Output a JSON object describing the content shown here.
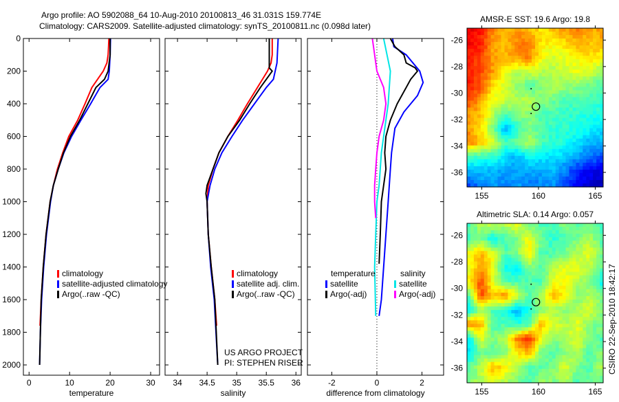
{
  "title_line1": "Argo profile: AO 5902088_64 10-Aug-2010 20100813_46 31.031S 159.774E",
  "title_line2": "Climatology: CARS2009. Satellite-adjusted climatology: synTS_20100811.nc (0.098d later)",
  "project_line1": "US ARGO PROJECT",
  "project_line2": "PI: STEPHEN RISER",
  "footer_stamp": "CSIRO 22-Sep-2010 18:42:17",
  "colors": {
    "climatology": "#ff0000",
    "satellite": "#0000ff",
    "argo": "#000000",
    "sal_satellite": "#00e5e5",
    "sal_argo": "#ff00ff"
  },
  "chart_data": [
    {
      "type": "line",
      "id": "temperature",
      "xlabel": "temperature",
      "ylabel": "",
      "xlim": [
        -1.4,
        32.2
      ],
      "ylim": [
        0,
        2063
      ],
      "xticks": [
        0,
        10,
        20,
        30
      ],
      "yticks": [
        0,
        200,
        400,
        600,
        800,
        1000,
        1200,
        1400,
        1600,
        1800,
        2000
      ],
      "legend": [
        "climatology",
        "satellite-adjusted climatology",
        "Argo(..raw -QC)"
      ],
      "legend_position": "lower-left",
      "series": [
        {
          "name": "climatology",
          "color": "#ff0000",
          "depth": [
            0,
            50,
            100,
            150,
            200,
            300,
            400,
            500,
            600,
            700,
            800,
            900,
            1000,
            1200,
            1400,
            1600,
            1760
          ],
          "values": [
            19.7,
            19.6,
            19.5,
            19.2,
            18.3,
            15.5,
            13.8,
            12.0,
            9.8,
            8.3,
            7.0,
            6.0,
            5.2,
            4.2,
            3.5,
            3.0,
            2.7
          ]
        },
        {
          "name": "satellite-adjusted climatology",
          "color": "#0000ff",
          "depth": [
            0,
            100,
            200,
            250,
            300,
            400,
            500,
            600,
            700,
            800,
            900,
            1000,
            1200,
            1400,
            1600,
            1800,
            2000
          ],
          "values": [
            20.1,
            20.0,
            19.8,
            19.5,
            17.5,
            15.2,
            12.8,
            10.5,
            8.6,
            7.2,
            6.0,
            5.3,
            4.3,
            3.6,
            3.1,
            2.8,
            2.6
          ]
        },
        {
          "name": "Argo(..raw -QC)",
          "color": "#000000",
          "depth": [
            0,
            100,
            200,
            250,
            300,
            400,
            500,
            600,
            700,
            800,
            900,
            1000,
            1200,
            1400,
            1600,
            1800,
            2000
          ],
          "values": [
            20.0,
            20.0,
            19.5,
            18.6,
            16.5,
            14.5,
            12.5,
            10.2,
            8.5,
            7.2,
            6.0,
            5.2,
            4.2,
            3.5,
            3.0,
            2.8,
            2.6
          ]
        }
      ]
    },
    {
      "type": "line",
      "id": "salinity",
      "xlabel": "salinity",
      "xlim": [
        33.79,
        36.09
      ],
      "ylim": [
        0,
        2063
      ],
      "xticks": [
        34,
        34.5,
        35,
        35.5,
        36
      ],
      "legend": [
        "climatology",
        "satellite adj. clim.",
        "Argo(..raw -QC)"
      ],
      "legend_position": "lower-right",
      "series": [
        {
          "name": "climatology",
          "color": "#ff0000",
          "depth": [
            0,
            100,
            150,
            200,
            300,
            400,
            500,
            600,
            700,
            800,
            900,
            1000,
            1200,
            1400,
            1600,
            1760
          ],
          "values": [
            35.6,
            35.6,
            35.58,
            35.52,
            35.35,
            35.18,
            35.02,
            34.85,
            34.7,
            34.6,
            34.52,
            34.5,
            34.52,
            34.57,
            34.63,
            34.66
          ]
        },
        {
          "name": "satellite adj. clim.",
          "color": "#0000ff",
          "depth": [
            0,
            150,
            250,
            300,
            400,
            500,
            600,
            700,
            800,
            900,
            1000,
            1200,
            1400,
            1600,
            1800,
            2000
          ],
          "values": [
            35.7,
            35.68,
            35.62,
            35.5,
            35.3,
            35.1,
            34.92,
            34.75,
            34.63,
            34.55,
            34.5,
            34.52,
            34.56,
            34.62,
            34.65,
            34.68
          ]
        },
        {
          "name": "Argo(..raw -QC)",
          "color": "#000000",
          "depth": [
            0,
            100,
            180,
            200,
            250,
            300,
            400,
            500,
            600,
            700,
            800,
            900,
            950,
            1000,
            1200,
            1400,
            1600,
            2000
          ],
          "values": [
            35.55,
            35.55,
            35.55,
            35.6,
            35.5,
            35.4,
            35.22,
            35.05,
            34.85,
            34.7,
            34.6,
            34.5,
            34.48,
            34.5,
            34.52,
            34.57,
            34.63,
            34.68
          ]
        }
      ]
    },
    {
      "type": "line",
      "id": "difference",
      "xlabel": "difference from climatology",
      "xlim": [
        -3.08,
        2.96
      ],
      "ylim": [
        0,
        2063
      ],
      "xticks": [
        -2,
        0,
        2
      ],
      "legend_headers": [
        "temperature",
        "salinity"
      ],
      "legend": [
        "satellite",
        "Argo(-adj)",
        "satellite",
        "Argo(-adj)"
      ],
      "series": [
        {
          "name": "temperature satellite",
          "color": "#0000ff",
          "depth": [
            0,
            50,
            100,
            200,
            270,
            350,
            450,
            550,
            700,
            800,
            1000,
            1200,
            1400,
            1600,
            1700
          ],
          "values": [
            0.7,
            0.75,
            1.3,
            1.9,
            2.05,
            1.8,
            1.2,
            0.8,
            0.65,
            0.6,
            0.5,
            0.4,
            0.3,
            0.2,
            0.1
          ]
        },
        {
          "name": "temperature Argo(-adj)",
          "color": "#000000",
          "depth": [
            0,
            50,
            100,
            150,
            180,
            200,
            250,
            300,
            400,
            500,
            600,
            700,
            800,
            900,
            1000,
            1200,
            1380
          ],
          "values": [
            0.6,
            0.8,
            1.2,
            1.3,
            1.7,
            1.8,
            1.5,
            1.3,
            0.9,
            0.6,
            0.4,
            0.35,
            0.4,
            0.3,
            0.2,
            0.15,
            0.1
          ]
        },
        {
          "name": "salinity satellite",
          "color": "#00e5e5",
          "depth": [
            0,
            100,
            200,
            300,
            400,
            500,
            700,
            900,
            1000,
            1200,
            1400,
            1700
          ],
          "values": [
            0.3,
            0.45,
            0.6,
            0.55,
            0.5,
            0.4,
            0.2,
            0.1,
            0.0,
            -0.05,
            -0.1,
            -0.05
          ]
        },
        {
          "name": "salinity Argo(-adj)",
          "color": "#ff00ff",
          "depth": [
            0,
            100,
            200,
            300,
            400,
            500,
            600,
            700,
            800,
            900,
            1000,
            1100
          ],
          "values": [
            -0.2,
            -0.1,
            0.0,
            0.3,
            0.4,
            0.3,
            0.1,
            0.0,
            -0.05,
            -0.1,
            -0.1,
            -0.05
          ]
        }
      ]
    },
    {
      "type": "heatmap",
      "id": "sst-map",
      "title": "AMSR-E SST: 19.6 Argo: 19.8",
      "xlim": [
        153.7,
        165.7
      ],
      "ylim": [
        -37.1,
        -25.1
      ],
      "xticks": [
        155,
        160,
        165
      ],
      "yticks": [
        -26,
        -28,
        -30,
        -32,
        -34,
        -36
      ],
      "argo_position": [
        159.774,
        -31.031
      ],
      "grid": [
        [
          0.9,
          0.85,
          0.75,
          0.7,
          0.72,
          0.7,
          0.65,
          0.68,
          0.72,
          0.75,
          0.7,
          0.72
        ],
        [
          0.88,
          0.85,
          0.72,
          0.68,
          0.75,
          0.75,
          0.65,
          0.62,
          0.65,
          0.7,
          0.68,
          0.7
        ],
        [
          0.85,
          0.8,
          0.72,
          0.7,
          0.72,
          0.75,
          0.62,
          0.58,
          0.6,
          0.62,
          0.65,
          0.62
        ],
        [
          0.85,
          0.8,
          0.72,
          0.62,
          0.55,
          0.58,
          0.55,
          0.55,
          0.58,
          0.6,
          0.58,
          0.52
        ],
        [
          0.85,
          0.8,
          0.65,
          0.58,
          0.52,
          0.45,
          0.5,
          0.55,
          0.52,
          0.5,
          0.48,
          0.45
        ],
        [
          0.8,
          0.72,
          0.6,
          0.58,
          0.55,
          0.55,
          0.52,
          0.48,
          0.45,
          0.45,
          0.45,
          0.42
        ],
        [
          0.72,
          0.68,
          0.55,
          0.45,
          0.5,
          0.52,
          0.45,
          0.45,
          0.42,
          0.42,
          0.4,
          0.4
        ],
        [
          0.72,
          0.65,
          0.5,
          0.3,
          0.42,
          0.5,
          0.45,
          0.42,
          0.42,
          0.4,
          0.38,
          0.35
        ],
        [
          0.75,
          0.68,
          0.6,
          0.45,
          0.48,
          0.55,
          0.45,
          0.42,
          0.4,
          0.35,
          0.3,
          0.3
        ],
        [
          0.45,
          0.42,
          0.42,
          0.35,
          0.3,
          0.38,
          0.35,
          0.35,
          0.32,
          0.28,
          0.25,
          0.2
        ],
        [
          0.3,
          0.32,
          0.3,
          0.28,
          0.3,
          0.28,
          0.3,
          0.3,
          0.25,
          0.15,
          0.12,
          0.1
        ],
        [
          0.2,
          0.25,
          0.3,
          0.25,
          0.28,
          0.25,
          0.25,
          0.28,
          0.2,
          0.12,
          0.08,
          0.05
        ]
      ]
    },
    {
      "type": "heatmap",
      "id": "sla-map",
      "title": "Altimetric SLA: 0.14 Argo: 0.057",
      "xlim": [
        153.7,
        165.7
      ],
      "ylim": [
        -37.1,
        -25.1
      ],
      "xticks": [
        155,
        160,
        165
      ],
      "yticks": [
        -26,
        -28,
        -30,
        -32,
        -34,
        -36
      ],
      "argo_position": [
        159.774,
        -31.031
      ],
      "grid": [
        [
          0.45,
          0.55,
          0.55,
          0.55,
          0.6,
          0.5,
          0.45,
          0.45,
          0.5,
          0.45,
          0.5,
          0.45
        ],
        [
          0.45,
          0.5,
          0.38,
          0.45,
          0.5,
          0.62,
          0.48,
          0.42,
          0.45,
          0.5,
          0.55,
          0.45
        ],
        [
          0.62,
          0.7,
          0.6,
          0.45,
          0.5,
          0.65,
          0.45,
          0.45,
          0.5,
          0.55,
          0.6,
          0.5
        ],
        [
          0.6,
          0.72,
          0.62,
          0.4,
          0.35,
          0.5,
          0.45,
          0.55,
          0.6,
          0.6,
          0.55,
          0.48
        ],
        [
          0.65,
          0.8,
          0.6,
          0.45,
          0.45,
          0.45,
          0.45,
          0.6,
          0.62,
          0.55,
          0.5,
          0.38
        ],
        [
          0.45,
          0.8,
          0.68,
          0.75,
          0.6,
          0.45,
          0.55,
          0.7,
          0.62,
          0.5,
          0.55,
          0.5
        ],
        [
          0.35,
          0.55,
          0.45,
          0.4,
          0.3,
          0.4,
          0.5,
          0.55,
          0.5,
          0.55,
          0.6,
          0.5
        ],
        [
          0.75,
          0.7,
          0.45,
          0.45,
          0.4,
          0.45,
          0.7,
          0.6,
          0.55,
          0.6,
          0.5,
          0.5
        ],
        [
          0.35,
          0.6,
          0.5,
          0.55,
          0.75,
          0.85,
          0.6,
          0.5,
          0.55,
          0.6,
          0.5,
          0.45
        ],
        [
          0.35,
          0.5,
          0.45,
          0.5,
          0.65,
          0.7,
          0.5,
          0.45,
          0.5,
          0.55,
          0.45,
          0.5
        ],
        [
          0.45,
          0.55,
          0.7,
          0.65,
          0.55,
          0.45,
          0.45,
          0.5,
          0.6,
          0.5,
          0.45,
          0.55
        ],
        [
          0.5,
          0.55,
          0.6,
          0.55,
          0.5,
          0.45,
          0.55,
          0.5,
          0.55,
          0.45,
          0.5,
          0.45
        ]
      ]
    }
  ]
}
